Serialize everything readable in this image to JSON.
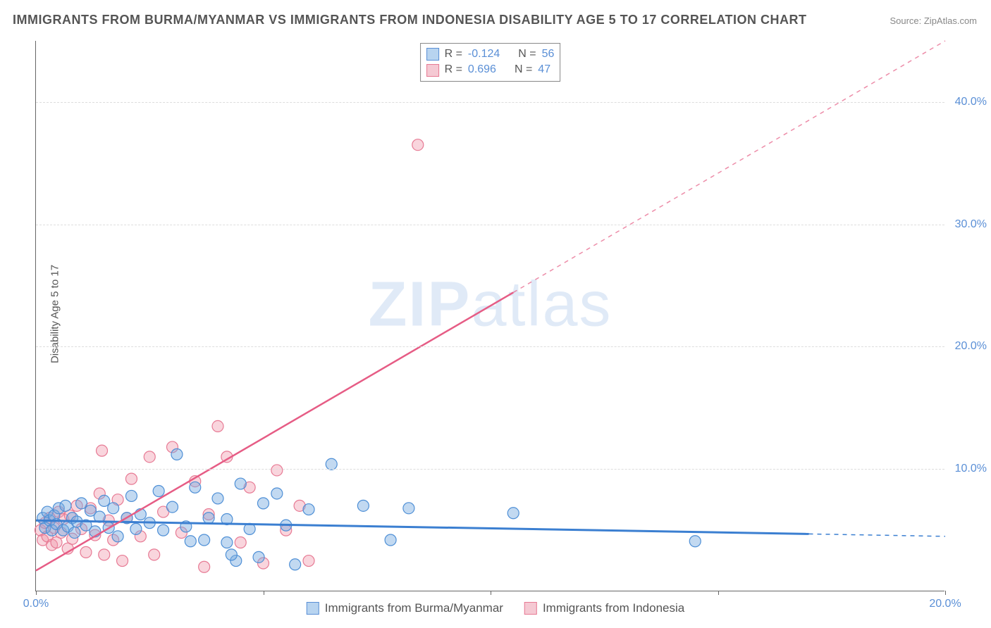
{
  "title": "IMMIGRANTS FROM BURMA/MYANMAR VS IMMIGRANTS FROM INDONESIA DISABILITY AGE 5 TO 17 CORRELATION CHART",
  "source": "Source: ZipAtlas.com",
  "ylabel": "Disability Age 5 to 17",
  "watermark_bold": "ZIP",
  "watermark_rest": "atlas",
  "chart": {
    "type": "scatter",
    "xlim": [
      0,
      20
    ],
    "ylim": [
      0,
      45
    ],
    "xticks": [
      0,
      5,
      10,
      15,
      20
    ],
    "xtick_labels": [
      "0.0%",
      "",
      "",
      "",
      "20.0%"
    ],
    "yticks": [
      10,
      20,
      30,
      40
    ],
    "ytick_labels": [
      "10.0%",
      "20.0%",
      "30.0%",
      "40.0%"
    ],
    "grid_color": "#dddddd",
    "background_color": "#ffffff",
    "point_radius": 8,
    "series": [
      {
        "name": "Immigrants from Burma/Myanmar",
        "color_fill": "rgba(120,170,225,0.45)",
        "color_stroke": "#4e8fd6",
        "swatch_fill": "#b8d4f0",
        "swatch_border": "#5a8fd6",
        "r": -0.124,
        "n": 56,
        "regression": {
          "x1": 0,
          "y1": 5.8,
          "x2": 20,
          "y2": 4.5,
          "dash_from_x": 17
        },
        "points": [
          [
            0.15,
            6.0
          ],
          [
            0.2,
            5.2
          ],
          [
            0.25,
            6.5
          ],
          [
            0.3,
            5.8
          ],
          [
            0.35,
            5.0
          ],
          [
            0.4,
            6.2
          ],
          [
            0.45,
            5.5
          ],
          [
            0.5,
            6.8
          ],
          [
            0.6,
            5.0
          ],
          [
            0.65,
            7.0
          ],
          [
            0.7,
            5.3
          ],
          [
            0.8,
            6.0
          ],
          [
            0.85,
            4.8
          ],
          [
            0.9,
            5.7
          ],
          [
            1.0,
            7.2
          ],
          [
            1.1,
            5.4
          ],
          [
            1.2,
            6.6
          ],
          [
            1.3,
            4.9
          ],
          [
            1.4,
            6.1
          ],
          [
            1.5,
            7.4
          ],
          [
            1.6,
            5.2
          ],
          [
            1.7,
            6.8
          ],
          [
            1.8,
            4.5
          ],
          [
            2.0,
            6.0
          ],
          [
            2.1,
            7.8
          ],
          [
            2.2,
            5.1
          ],
          [
            2.3,
            6.3
          ],
          [
            2.5,
            5.6
          ],
          [
            2.7,
            8.2
          ],
          [
            2.8,
            5.0
          ],
          [
            3.0,
            6.9
          ],
          [
            3.1,
            11.2
          ],
          [
            3.3,
            5.3
          ],
          [
            3.5,
            8.5
          ],
          [
            3.7,
            4.2
          ],
          [
            3.8,
            6.0
          ],
          [
            4.0,
            7.6
          ],
          [
            4.2,
            5.9
          ],
          [
            4.2,
            4.0
          ],
          [
            4.4,
            2.5
          ],
          [
            4.5,
            8.8
          ],
          [
            4.7,
            5.1
          ],
          [
            4.9,
            2.8
          ],
          [
            5.0,
            7.2
          ],
          [
            5.3,
            8.0
          ],
          [
            5.5,
            5.4
          ],
          [
            5.7,
            2.2
          ],
          [
            6.0,
            6.7
          ],
          [
            6.5,
            10.4
          ],
          [
            7.2,
            7.0
          ],
          [
            7.8,
            4.2
          ],
          [
            8.2,
            6.8
          ],
          [
            10.5,
            6.4
          ],
          [
            14.5,
            4.1
          ],
          [
            4.3,
            3.0
          ],
          [
            3.4,
            4.1
          ]
        ]
      },
      {
        "name": "Immigrants from Indonesia",
        "color_fill": "rgba(240,150,170,0.4)",
        "color_stroke": "#e77a94",
        "swatch_fill": "#f5c9d3",
        "swatch_border": "#e77a94",
        "r": 0.696,
        "n": 47,
        "regression": {
          "x1": 0,
          "y1": 1.7,
          "x2": 20,
          "y2": 45,
          "dash_from_x": 10.5
        },
        "points": [
          [
            0.1,
            5.0
          ],
          [
            0.15,
            4.2
          ],
          [
            0.2,
            5.6
          ],
          [
            0.25,
            4.5
          ],
          [
            0.3,
            6.0
          ],
          [
            0.35,
            3.8
          ],
          [
            0.4,
            5.2
          ],
          [
            0.45,
            4.0
          ],
          [
            0.5,
            6.5
          ],
          [
            0.55,
            4.8
          ],
          [
            0.6,
            5.9
          ],
          [
            0.7,
            3.5
          ],
          [
            0.75,
            6.2
          ],
          [
            0.8,
            4.3
          ],
          [
            0.9,
            7.0
          ],
          [
            1.0,
            5.1
          ],
          [
            1.1,
            3.2
          ],
          [
            1.2,
            6.8
          ],
          [
            1.3,
            4.6
          ],
          [
            1.4,
            8.0
          ],
          [
            1.45,
            11.5
          ],
          [
            1.5,
            3.0
          ],
          [
            1.6,
            5.8
          ],
          [
            1.7,
            4.2
          ],
          [
            1.8,
            7.5
          ],
          [
            1.9,
            2.5
          ],
          [
            2.0,
            6.0
          ],
          [
            2.1,
            9.2
          ],
          [
            2.3,
            4.5
          ],
          [
            2.5,
            11.0
          ],
          [
            2.6,
            3.0
          ],
          [
            2.8,
            6.5
          ],
          [
            3.0,
            11.8
          ],
          [
            3.2,
            4.8
          ],
          [
            3.5,
            9.0
          ],
          [
            3.7,
            2.0
          ],
          [
            3.8,
            6.3
          ],
          [
            4.0,
            13.5
          ],
          [
            4.2,
            11.0
          ],
          [
            4.5,
            4.0
          ],
          [
            4.7,
            8.5
          ],
          [
            5.0,
            2.3
          ],
          [
            5.3,
            9.9
          ],
          [
            5.5,
            5.0
          ],
          [
            5.8,
            7.0
          ],
          [
            6.0,
            2.5
          ],
          [
            8.4,
            36.5
          ]
        ]
      }
    ]
  },
  "legend_top": [
    {
      "swatch_fill": "#b8d4f0",
      "swatch_border": "#5a8fd6",
      "r_label": "R =",
      "r_value": "-0.124",
      "n_label": "N =",
      "n_value": "56"
    },
    {
      "swatch_fill": "#f5c9d3",
      "swatch_border": "#e77a94",
      "r_label": "R =",
      "r_value": "0.696",
      "n_label": "N =",
      "n_value": "47"
    }
  ],
  "legend_bottom": [
    {
      "swatch_fill": "#b8d4f0",
      "swatch_border": "#5a8fd6",
      "label": "Immigrants from Burma/Myanmar"
    },
    {
      "swatch_fill": "#f5c9d3",
      "swatch_border": "#e77a94",
      "label": "Immigrants from Indonesia"
    }
  ]
}
